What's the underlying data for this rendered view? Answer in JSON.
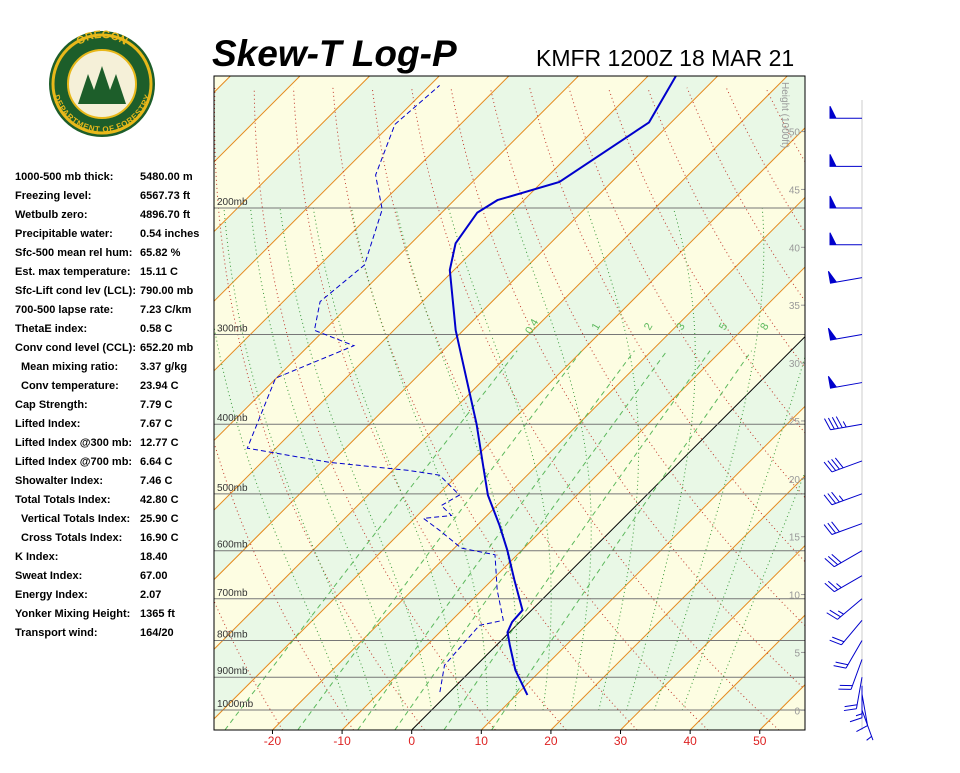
{
  "logo": {
    "top": "OREGON",
    "bottom": "DEPARTMENT OF FORESTRY"
  },
  "stats": [
    {
      "label": "1000-500 mb thick:",
      "value": "5480.00 m"
    },
    {
      "label": "Freezing level:",
      "value": "6567.73 ft"
    },
    {
      "label": "Wetbulb zero:",
      "value": "4896.70 ft"
    },
    {
      "label": "Precipitable water:",
      "value": "0.54 inches"
    },
    {
      "label": "Sfc-500 mean rel hum:",
      "value": "65.82 %"
    },
    {
      "label": "Est. max temperature:",
      "value": "15.11 C"
    },
    {
      "label": "Sfc-Lift cond lev (LCL):",
      "value": "790.00 mb"
    },
    {
      "label": "700-500 lapse rate:",
      "value": "7.23 C/km"
    },
    {
      "label": "ThetaE index:",
      "value": "0.58 C"
    },
    {
      "label": "Conv cond level (CCL):",
      "value": "652.20 mb"
    },
    {
      "label": "Mean mixing ratio:",
      "value": "3.37 g/kg",
      "indent": true
    },
    {
      "label": "Conv temperature:",
      "value": "23.94 C",
      "indent": true
    },
    {
      "label": "Cap Strength:",
      "value": "7.79 C"
    },
    {
      "label": "Lifted Index:",
      "value": "7.67 C"
    },
    {
      "label": "Lifted Index @300 mb:",
      "value": "12.77 C"
    },
    {
      "label": "Lifted Index @700 mb:",
      "value": "6.64 C"
    },
    {
      "label": "Showalter Index:",
      "value": "7.46 C"
    },
    {
      "label": "Total Totals Index:",
      "value": "42.80 C"
    },
    {
      "label": "Vertical Totals Index:",
      "value": "25.90 C",
      "indent": true
    },
    {
      "label": "Cross Totals Index:",
      "value": "16.90 C",
      "indent": true
    },
    {
      "label": "K Index:",
      "value": "18.40"
    },
    {
      "label": "Sweat Index:",
      "value": "67.00"
    },
    {
      "label": "Energy Index:",
      "value": "2.07"
    },
    {
      "label": "Yonker Mixing Height:",
      "value": "1365 ft"
    },
    {
      "label": "Transport wind:",
      "value": "164/20"
    }
  ],
  "chart_data": {
    "type": "skew-t",
    "title": "Skew-T Log-P",
    "subtitle": "KMFR 1200Z 18 MAR 21",
    "xlim": [
      -28.4,
      56.5
    ],
    "xticks": [
      -20,
      -10,
      0,
      10,
      20,
      30,
      40,
      50
    ],
    "ylim": [
      1066,
      131
    ],
    "log_y": true,
    "yticks": [
      {
        "value": 1000,
        "label": "1000mb"
      },
      {
        "value": 900,
        "label": "900mb"
      },
      {
        "value": 800,
        "label": "800mb"
      },
      {
        "value": 700,
        "label": "700mb"
      },
      {
        "value": 600,
        "label": "600mb"
      },
      {
        "value": 500,
        "label": "500mb"
      },
      {
        "value": 400,
        "label": "400mb"
      },
      {
        "value": 300,
        "label": "300mb"
      },
      {
        "value": 200,
        "label": "200mb"
      }
    ],
    "height_label": "Height (1000ft)",
    "height_lim": [
      -1.7,
      54.8
    ],
    "height_ticks": [
      0,
      5,
      10,
      15,
      20,
      25,
      30,
      35,
      40,
      45,
      50
    ],
    "mixing_ratio_lines": [
      0.4,
      1,
      2,
      3,
      5,
      8
    ],
    "temperature": {
      "color": "#0000cc",
      "pressure": [
        953,
        880,
        812,
        779,
        754,
        726,
        659,
        599,
        553,
        502,
        464,
        400,
        311,
        296,
        244,
        224,
        203,
        195,
        184,
        152,
        131
      ],
      "values": [
        11.6,
        6.3,
        1.9,
        -0.3,
        -1.1,
        -1.3,
        -6.8,
        -12.1,
        -16.8,
        -22.8,
        -26.9,
        -34.6,
        -48.4,
        -51.1,
        -60.6,
        -63.6,
        -64.9,
        -63.8,
        -57.5,
        -53.2,
        -56.0
      ]
    },
    "dewpoint": {
      "color": "#0000cc",
      "pressure": [
        944,
        866,
        762,
        750,
        681,
        608,
        595,
        562,
        541,
        536,
        519,
        502,
        471,
        464,
        452,
        432,
        345,
        311,
        296,
        270,
        240,
        201,
        180,
        153,
        135
      ],
      "values": [
        -1.4,
        -4.6,
        -5.3,
        -2.6,
        -7.8,
        -13.2,
        -19.0,
        -24.7,
        -28.7,
        -25.1,
        -28.0,
        -26.9,
        -32.6,
        -37.6,
        -50.3,
        -64.1,
        -70.1,
        -63.5,
        -71.4,
        -74.7,
        -73.6,
        -79.0,
        -84.9,
        -89.4,
        -88.6
      ]
    },
    "wind": {
      "color": "#0000cc",
      "pressure": [
        1000,
        950,
        925,
        900,
        850,
        800,
        750,
        700,
        650,
        600,
        550,
        500,
        450,
        400,
        350,
        300,
        250,
        225,
        200,
        175,
        150
      ],
      "direction": [
        160,
        170,
        180,
        190,
        200,
        210,
        220,
        230,
        240,
        240,
        250,
        250,
        250,
        260,
        260,
        260,
        260,
        270,
        270,
        270,
        270
      ],
      "speed": [
        5,
        10,
        15,
        20,
        20,
        20,
        20,
        25,
        25,
        30,
        30,
        35,
        40,
        45,
        50,
        55,
        60,
        60,
        60,
        55,
        50
      ]
    }
  }
}
